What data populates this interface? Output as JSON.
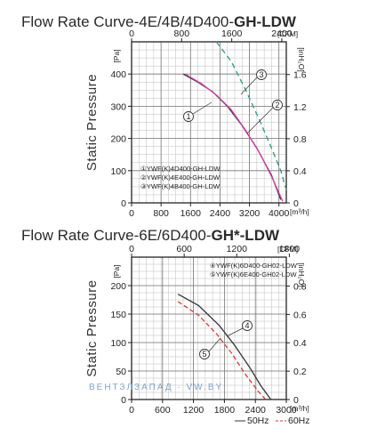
{
  "watermark": "ВЕНТЗЛЗАПАД · VW.BY",
  "chart_data": [
    {
      "type": "line",
      "title_prefix": "Flow Rate Curve-4E/4B/4D400-",
      "title_bold": "GH-LDW",
      "ylabel": "Static Pressure",
      "x_unit_bottom": "[m³/h]",
      "x_unit_top": "[CFM]",
      "y_unit_left": "[Pa]",
      "y_unit_right": "[inH₂O]",
      "xlim": [
        0,
        4200
      ],
      "ylim": [
        0,
        500
      ],
      "x_ticks": [
        "0",
        "800",
        "1600",
        "2400",
        "3200",
        "4000"
      ],
      "x_tick_values": [
        0,
        800,
        1600,
        2400,
        3200,
        4000
      ],
      "top_ticks": [
        "0",
        "800",
        "1600",
        "2400"
      ],
      "top_tick_cfm": [
        0,
        800,
        1600,
        2400
      ],
      "y_ticks": [
        "0",
        "100",
        "200",
        "300",
        "400"
      ],
      "y_tick_values": [
        0,
        100,
        200,
        300,
        400
      ],
      "right_ticks": [
        "0",
        "0.4",
        "0.8",
        "1.2",
        "1.6"
      ],
      "right_tick_values": [
        0,
        0.4,
        0.8,
        1.2,
        1.6
      ],
      "grid": true,
      "legend": [
        "①YWF(K)4D400-GH-LDW",
        "②YWF(K)4E400-GH-LDW",
        "③YWF(K)4B400-GH-LDW"
      ],
      "series": [
        {
          "label": "1",
          "color": "#333333",
          "dash": "",
          "x": [
            1400,
            1800,
            2200,
            2600,
            3000,
            3400,
            3800,
            4050
          ],
          "y": [
            400,
            375,
            345,
            300,
            240,
            170,
            85,
            10
          ]
        },
        {
          "label": "2",
          "color": "#d63fae",
          "dash": "",
          "x": [
            1450,
            1900,
            2300,
            2700,
            3100,
            3500,
            3850,
            4100
          ],
          "y": [
            400,
            370,
            335,
            290,
            225,
            150,
            70,
            5
          ]
        },
        {
          "label": "3",
          "color": "#2f9d6b",
          "dash": "6,4",
          "x": [
            2300,
            2700,
            3100,
            3500,
            3800,
            4050,
            4200
          ],
          "y": [
            550,
            440,
            350,
            250,
            170,
            100,
            40
          ]
        }
      ],
      "annotations": [
        "1",
        "2",
        "3"
      ]
    },
    {
      "type": "line",
      "title_prefix": "Flow Rate Curve-6E/6D400-",
      "title_bold": "GH*-LDW",
      "ylabel": "Static Pressure",
      "x_unit_bottom": "[m³/h]",
      "x_unit_top": "[CFM]",
      "y_unit_left": "[Pa]",
      "y_unit_right": "[inH₂O]",
      "xlim": [
        0,
        3000
      ],
      "ylim": [
        0,
        250
      ],
      "x_ticks": [
        "0",
        "600",
        "1200",
        "1800",
        "2400",
        "3000"
      ],
      "x_tick_values": [
        0,
        600,
        1200,
        1800,
        2400,
        3000
      ],
      "top_ticks": [
        "0",
        "600",
        "1200",
        "1800"
      ],
      "top_tick_cfm": [
        0,
        600,
        1200,
        1800
      ],
      "y_ticks": [
        "0",
        "50",
        "100",
        "150",
        "200"
      ],
      "y_tick_values": [
        0,
        50,
        100,
        150,
        200
      ],
      "right_ticks": [
        "0",
        "0.2",
        "0.4",
        "0.6",
        "0.8"
      ],
      "right_tick_values": [
        0,
        0.2,
        0.4,
        0.6,
        0.8
      ],
      "grid": true,
      "legend": [
        "④YWF(K)6D400-GH02-LDW",
        "⑤YWF(K)6E400-GH02-LDW"
      ],
      "frequency_legend": [
        "50Hz",
        "60Hz"
      ],
      "series": [
        {
          "label": "4",
          "color": "#333333",
          "dash": "",
          "x": [
            900,
            1300,
            1700,
            2000,
            2300,
            2500,
            2700
          ],
          "y": [
            185,
            165,
            130,
            95,
            55,
            25,
            0
          ]
        },
        {
          "label": "5",
          "color": "#d63a3a",
          "dash": "5,3",
          "x": [
            900,
            1300,
            1650,
            1950,
            2200,
            2450,
            2600
          ],
          "y": [
            172,
            148,
            115,
            80,
            45,
            15,
            0
          ]
        }
      ],
      "annotations": [
        "4",
        "5"
      ]
    }
  ]
}
